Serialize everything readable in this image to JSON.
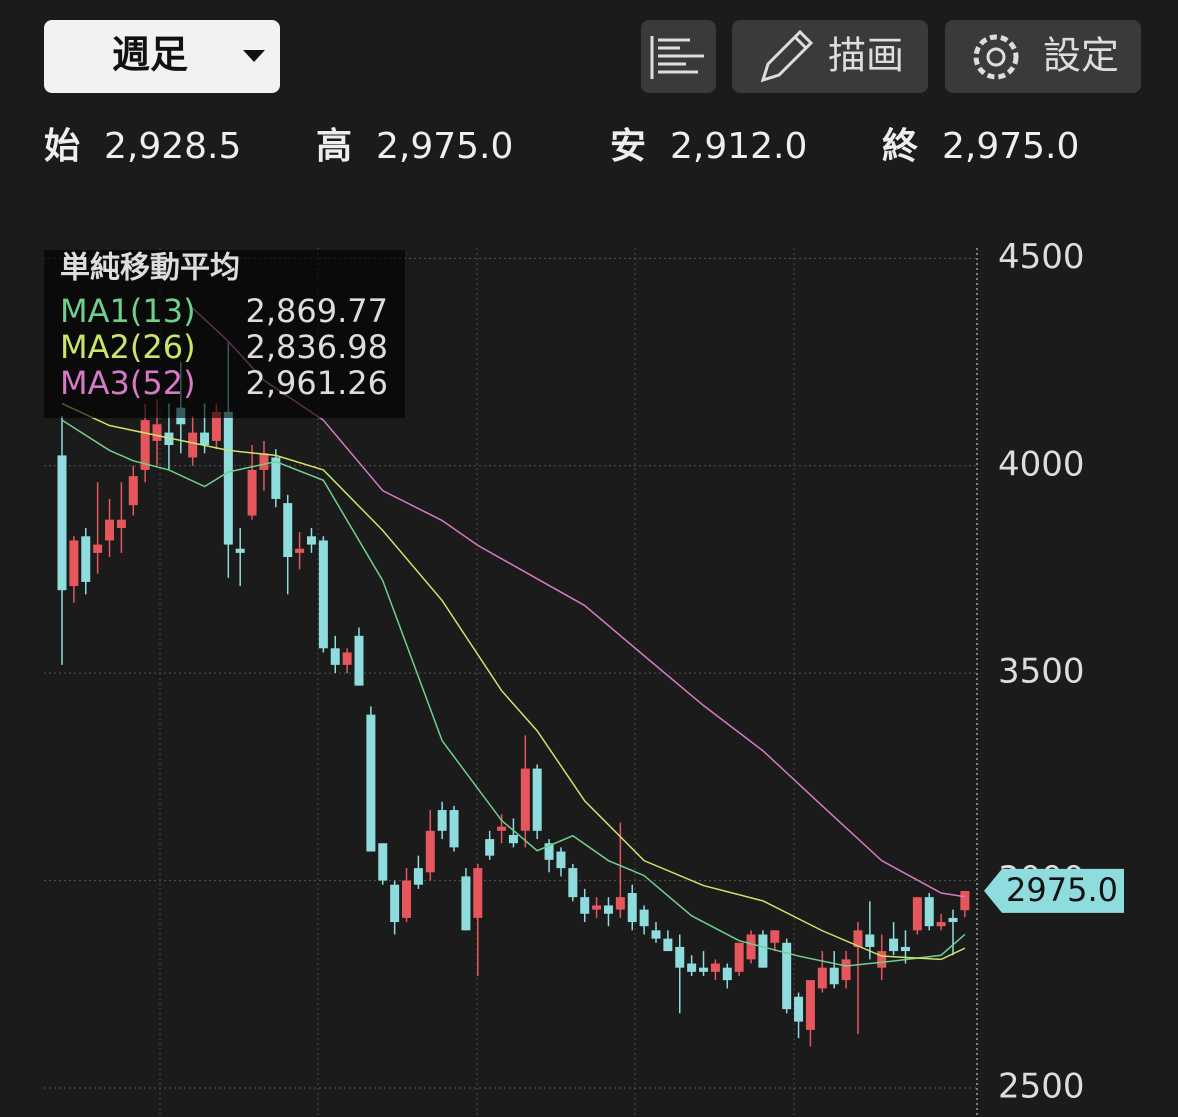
{
  "toolbar": {
    "period": "週足",
    "draw": "描画",
    "settings": "設定"
  },
  "ohlc": [
    {
      "label": "始",
      "value": "2,928.5"
    },
    {
      "label": "高",
      "value": "2,975.0"
    },
    {
      "label": "安",
      "value": "2,912.0"
    },
    {
      "label": "終",
      "value": "2,975.0"
    }
  ],
  "chart_data": {
    "type": "candlestick",
    "open": [
      4025,
      3710,
      3830,
      3790,
      3820,
      3850,
      3905,
      3990,
      4060,
      4080,
      4140,
      4020,
      4080,
      4060,
      4130,
      3800,
      3880,
      3990,
      4020,
      3910,
      3790,
      3830,
      3820,
      3560,
      3520,
      3590,
      3400,
      3090,
      2990,
      2910,
      3030,
      3020,
      3170,
      3170,
      3010,
      2910,
      3100,
      3120,
      3110,
      3120,
      3270,
      3090,
      3070,
      3030,
      2960,
      2930,
      2940,
      2930,
      2970,
      2930,
      2880,
      2860,
      2840,
      2800,
      2790,
      2780,
      2790,
      2780,
      2810,
      2870,
      2850,
      2850,
      2720,
      2640,
      2740,
      2790,
      2760,
      2840,
      2870,
      2790,
      2860,
      2840,
      2880,
      2960,
      2890,
      2910,
      2928.5
    ],
    "high": [
      4120,
      3830,
      3850,
      3960,
      3920,
      3960,
      4000,
      4150,
      4160,
      4150,
      4250,
      4120,
      4150,
      4150,
      4300,
      3850,
      4050,
      4060,
      4040,
      3930,
      3840,
      3850,
      3830,
      3590,
      3560,
      3610,
      3420,
      3090,
      3000,
      3030,
      3060,
      3170,
      3190,
      3180,
      3030,
      3040,
      3120,
      3160,
      3150,
      3350,
      3280,
      3100,
      3080,
      3040,
      2980,
      2960,
      2960,
      3140,
      2990,
      2940,
      2900,
      2880,
      2870,
      2820,
      2830,
      2810,
      2800,
      2840,
      2880,
      2880,
      2880,
      2860,
      2730,
      2750,
      2830,
      2830,
      2830,
      2900,
      2950,
      2870,
      2900,
      2880,
      2960,
      2970,
      2920,
      2930,
      2975
    ],
    "low": [
      3520,
      3670,
      3690,
      3740,
      3780,
      3790,
      3880,
      3960,
      4000,
      3990,
      4030,
      4000,
      4030,
      4040,
      3730,
      3710,
      3870,
      3940,
      3900,
      3690,
      3750,
      3790,
      3550,
      3500,
      3500,
      3470,
      3070,
      2990,
      2870,
      2900,
      2980,
      3000,
      3100,
      3070,
      2880,
      2770,
      3050,
      3090,
      3080,
      3080,
      3100,
      3020,
      3010,
      2950,
      2900,
      2910,
      2890,
      2910,
      2880,
      2870,
      2850,
      2830,
      2680,
      2770,
      2770,
      2760,
      2740,
      2770,
      2800,
      2790,
      2830,
      2680,
      2620,
      2600,
      2730,
      2740,
      2740,
      2630,
      2810,
      2760,
      2820,
      2800,
      2870,
      2880,
      2880,
      2820,
      2912
    ],
    "close": [
      3700,
      3820,
      3720,
      3810,
      3870,
      3870,
      3975,
      4110,
      4100,
      4050,
      4100,
      4080,
      4050,
      4130,
      3810,
      3790,
      3990,
      4030,
      3920,
      3780,
      3800,
      3810,
      3560,
      3520,
      3550,
      3470,
      3070,
      3000,
      2900,
      3000,
      2990,
      3120,
      3120,
      3080,
      2880,
      3030,
      3060,
      3130,
      3090,
      3270,
      3120,
      3050,
      3030,
      2960,
      2920,
      2940,
      2920,
      2960,
      2900,
      2890,
      2860,
      2830,
      2790,
      2780,
      2780,
      2800,
      2760,
      2850,
      2870,
      2790,
      2880,
      2690,
      2660,
      2760,
      2790,
      2750,
      2810,
      2880,
      2840,
      2830,
      2830,
      2830,
      2960,
      2890,
      2900,
      2900,
      2975
    ],
    "up_color": "#e5575c",
    "down_color": "#8fdcdf",
    "ylim": [
      2430,
      4525
    ],
    "yticks": [
      4500,
      4000,
      3500,
      3000,
      2500
    ],
    "grid": true,
    "legend_title": "単純移動平均",
    "series": [
      {
        "name": "MA1(13)",
        "color": "#6fd08c",
        "legend_value": "2,869.77",
        "x": [
          0,
          4,
          6,
          9,
          12,
          14,
          18,
          22,
          27,
          32,
          37,
          40,
          43,
          46,
          49,
          53,
          57,
          62,
          66,
          70,
          74,
          76
        ],
        "values": [
          4110,
          4037,
          4012,
          3990,
          3950,
          3985,
          4010,
          3965,
          3723,
          3337,
          3145,
          3072,
          3108,
          3048,
          3012,
          2915,
          2855,
          2818,
          2794,
          2806,
          2820,
          2870
        ]
      },
      {
        "name": "MA2(26)",
        "color": "#c8e66b",
        "legend_value": "2,836.98",
        "x": [
          0,
          4,
          8,
          14,
          18,
          22,
          27,
          32,
          37,
          40,
          44,
          49,
          54,
          59,
          64,
          69,
          74,
          76
        ],
        "values": [
          4150,
          4097,
          4073,
          4037,
          4025,
          3990,
          3844,
          3675,
          3458,
          3361,
          3192,
          3048,
          2988,
          2951,
          2879,
          2818,
          2810,
          2837
        ]
      },
      {
        "name": "MA3(52)",
        "color": "#d77ac5",
        "legend_value": "2,961.26",
        "x": [
          11,
          14,
          17,
          22,
          27,
          32,
          35,
          44,
          49,
          54,
          59,
          64,
          69,
          74,
          76
        ],
        "values": [
          4380,
          4300,
          4206,
          4110,
          3940,
          3868,
          3808,
          3663,
          3542,
          3422,
          3313,
          3180,
          3048,
          2970,
          2961
        ]
      }
    ],
    "last_price_label": "2975.0"
  }
}
